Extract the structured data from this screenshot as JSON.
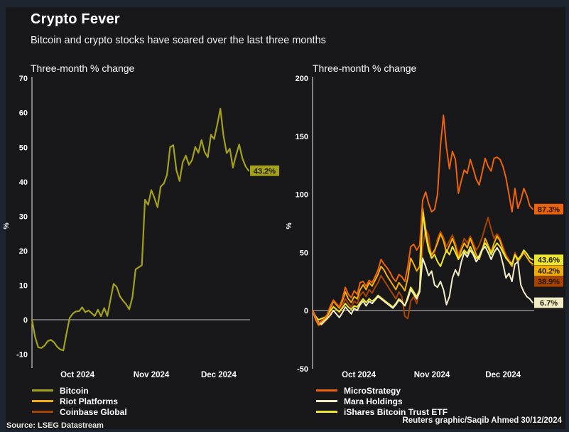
{
  "header": {
    "title": "Crypto Fever",
    "subtitle": "Bitcoin and crypto stocks have soared over the last three months"
  },
  "footer": {
    "source": "Source: LSEG Datastream",
    "credit": "Reuters graphic/Saqib Ahmed 30/12/2024"
  },
  "colors": {
    "background_frame": "#1c2430",
    "background_panel": "#18181a",
    "axis": "#c9c9c9",
    "bitcoin": "#a3a019",
    "riot_platforms": "#f3ad0a",
    "coinbase_global": "#a94301",
    "microstrategy": "#ee620a",
    "mara_holdings": "#f3edc6",
    "ishares_bitcoin_trust_etf": "#ece62e"
  },
  "chart_data": [
    {
      "id": "bitcoin",
      "type": "line",
      "title": "Three-month % change",
      "ylabel": "%",
      "ylim": [
        -14,
        70
      ],
      "yticks": [
        70,
        60,
        50,
        40,
        30,
        20,
        10,
        0,
        -10
      ],
      "xticks": [
        "Oct 2024",
        "Nov 2024",
        "Dec 2024"
      ],
      "grid": false,
      "zero_line": true,
      "legend_position": "below-left",
      "series": [
        {
          "name": "Bitcoin",
          "color": "#a3a019",
          "end_label": "43.2%",
          "end_value": 43.2,
          "values": [
            0,
            -5,
            -8,
            -8.2,
            -7.5,
            -6.2,
            -5.8,
            -6.5,
            -7.8,
            -8.6,
            -8.9,
            -4,
            0.5,
            1.8,
            2.4,
            2.5,
            3.6,
            2.2,
            2.7,
            1.9,
            1.1,
            2.9,
            1.0,
            3.4,
            1.1,
            5.8,
            10.4,
            9.5,
            6.8,
            5.5,
            4.5,
            3.0,
            6.5,
            14.6,
            15.2,
            15.8,
            34.8,
            33.3,
            37.6,
            35.3,
            32.6,
            38.6,
            39.5,
            42.0,
            50.0,
            50.6,
            43.4,
            40.2,
            45.6,
            47.6,
            44.9,
            46.3,
            50.1,
            48.4,
            52.1,
            48.6,
            47.1,
            53.6,
            52.4,
            56.5,
            61.2,
            53.3,
            48.3,
            49.6,
            44.1,
            47.7,
            50.8,
            46.8,
            44.5,
            43.2
          ]
        }
      ],
      "legend": [
        {
          "name": "Bitcoin",
          "color": "#a3a019"
        },
        {
          "name": "Riot Platforms",
          "color": "#f3ad0a"
        },
        {
          "name": "Coinbase Global",
          "color": "#a94301"
        }
      ]
    },
    {
      "id": "crypto-stocks",
      "type": "line",
      "title": "Three-month % change",
      "ylabel": "%",
      "ylim": [
        -50,
        200
      ],
      "yticks": [
        200,
        150,
        100,
        50,
        0,
        -50
      ],
      "xticks": [
        "Oct 2024",
        "Nov 2024",
        "Dec 2024"
      ],
      "grid": false,
      "zero_line": true,
      "legend_position": "below-right",
      "series": [
        {
          "name": "Coinbase Global",
          "color": "#a94301",
          "end_label": "38.9%",
          "end_value": 38.9,
          "values": [
            0,
            -8,
            -13,
            -12,
            -10,
            -7,
            -2,
            4,
            1,
            -2,
            4,
            10,
            6,
            3,
            8,
            6,
            13,
            16,
            12,
            18,
            15,
            20,
            24,
            30,
            26,
            22,
            18,
            14,
            10,
            16,
            12,
            -5,
            -7,
            8,
            12,
            6,
            20,
            55,
            70,
            65,
            45,
            50,
            62,
            68,
            63,
            55,
            60,
            65,
            58,
            48,
            55,
            62,
            58,
            64,
            58,
            52,
            56,
            63,
            72,
            80,
            70,
            62,
            66,
            62,
            55,
            48,
            44,
            40,
            50,
            44,
            47,
            50,
            46,
            42,
            38.9
          ]
        },
        {
          "name": "Riot Platforms",
          "color": "#f3ad0a",
          "end_label": "40.2%",
          "end_value": 40.2,
          "values": [
            0,
            -7,
            -12,
            -10,
            -8,
            -5,
            2,
            8,
            5,
            2,
            8,
            16,
            10,
            7,
            12,
            10,
            18,
            22,
            18,
            24,
            21,
            26,
            31,
            38,
            35,
            30,
            26,
            22,
            18,
            24,
            21,
            17,
            28,
            45,
            40,
            34,
            38,
            88,
            70,
            55,
            48,
            52,
            58,
            66,
            60,
            50,
            56,
            62,
            55,
            45,
            52,
            58,
            54,
            62,
            55,
            48,
            44,
            52,
            62,
            56,
            50,
            58,
            64,
            60,
            52,
            46,
            42,
            38,
            48,
            42,
            46,
            50,
            46,
            42,
            40.2
          ]
        },
        {
          "name": "iShares Bitcoin Trust ETF",
          "color": "#ece62e",
          "end_label": "43.6%",
          "end_value": 43.6,
          "values": [
            0,
            -5,
            -8,
            -7,
            -6,
            -4,
            0,
            3,
            1,
            -1,
            2,
            6,
            3,
            1,
            4,
            3,
            7,
            10,
            7,
            10,
            8,
            10,
            13,
            11,
            9,
            7,
            5,
            3,
            6,
            10,
            8,
            4,
            12,
            20,
            16,
            12,
            18,
            85,
            65,
            52,
            45,
            48,
            42,
            38,
            45,
            52,
            48,
            55,
            50,
            44,
            48,
            52,
            49,
            55,
            50,
            45,
            47,
            53,
            58,
            54,
            48,
            54,
            58,
            55,
            50,
            45,
            42,
            40,
            48,
            44,
            47,
            52,
            49,
            45,
            43.6
          ]
        },
        {
          "name": "Mara Holdings",
          "color": "#f3edc6",
          "end_label": "6.7%",
          "end_value": 6.7,
          "values": [
            0,
            -6,
            -10,
            -12,
            -9,
            -7,
            -4,
            0,
            -3,
            -6,
            -2,
            3,
            0,
            -3,
            2,
            0,
            5,
            8,
            4,
            8,
            6,
            9,
            12,
            10,
            8,
            6,
            4,
            2,
            5,
            9,
            7,
            4,
            10,
            18,
            14,
            10,
            16,
            45,
            38,
            30,
            34,
            22,
            20,
            25,
            18,
            5,
            12,
            28,
            35,
            30,
            42,
            50,
            46,
            52,
            48,
            42,
            46,
            52,
            55,
            50,
            44,
            50,
            54,
            50,
            40,
            28,
            32,
            25,
            40,
            42,
            22,
            16,
            12,
            10,
            6.7
          ]
        },
        {
          "name": "MicroStrategy",
          "color": "#ee620a",
          "end_label": "87.3%",
          "end_value": 87.3,
          "values": [
            0,
            -6,
            -11,
            -9,
            -7,
            -3,
            4,
            9,
            6,
            3,
            10,
            20,
            14,
            11,
            17,
            14,
            24,
            25,
            21,
            26,
            24,
            29,
            35,
            44,
            40,
            37,
            33,
            28,
            25,
            31,
            29,
            25,
            38,
            55,
            57,
            52,
            56,
            95,
            102,
            92,
            85,
            87,
            100,
            142,
            168,
            140,
            122,
            137,
            130,
            101,
            112,
            121,
            118,
            130,
            122,
            113,
            108,
            119,
            131,
            124,
            120,
            131,
            132,
            130,
            124,
            114,
            100,
            85,
            105,
            88,
            95,
            105,
            99,
            90,
            87.3
          ]
        }
      ],
      "legend": [
        {
          "name": "MicroStrategy",
          "color": "#ee620a"
        },
        {
          "name": "Mara Holdings",
          "color": "#f3edc6"
        },
        {
          "name": "iShares Bitcoin Trust ETF",
          "color": "#ece62e"
        }
      ]
    }
  ]
}
